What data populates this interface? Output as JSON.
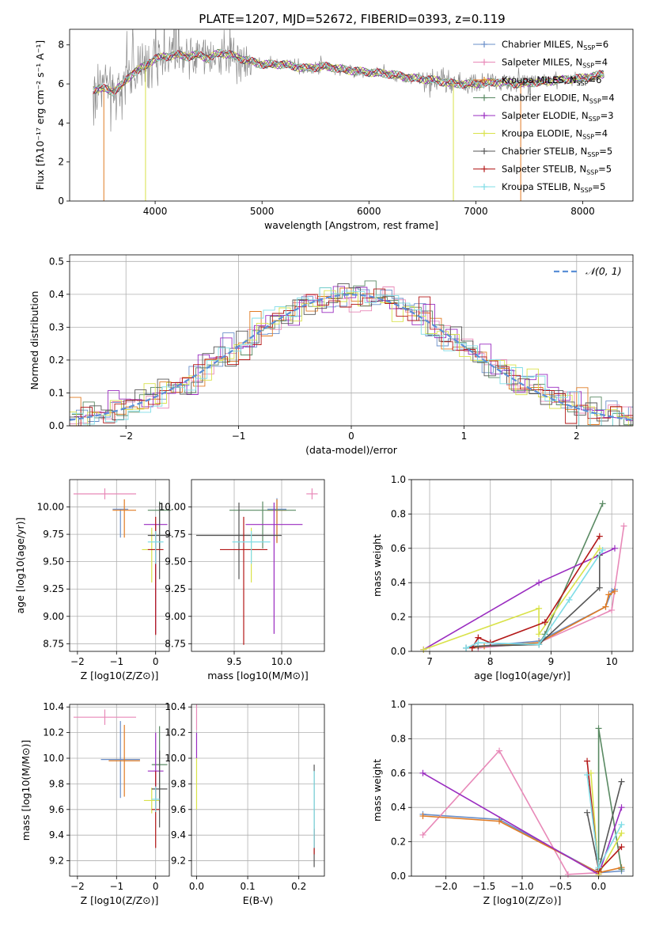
{
  "figure": {
    "title": "PLATE=1207, MJD=52672, FIBERID=0393, z=0.119"
  },
  "colors": {
    "Chabrier MILES": "#6a8fc9",
    "Salpeter MILES": "#e889b8",
    "Kroupa MILES": "#e07b24",
    "Chabrier ELODIE": "#5a8a63",
    "Salpeter ELODIE": "#9a2cc0",
    "Kroupa ELODIE": "#d9e24a",
    "Chabrier STELIB": "#555555",
    "Salpeter STELIB": "#b31818",
    "Kroupa STELIB": "#7fdde6",
    "normal": "#5b8fd6",
    "data": "#808080"
  },
  "chart_data": [
    {
      "type": "line",
      "xlabel": "wavelength [Angstrom, rest frame]",
      "ylabel": "Flux [fλ10⁻¹⁷ erg cm⁻² s⁻¹ A⁻¹]",
      "xlim": [
        3200,
        8470
      ],
      "ylim": [
        0,
        8.8
      ],
      "xticks": [
        4000,
        5000,
        6000,
        7000,
        8000
      ],
      "yticks": [
        0,
        2,
        4,
        6,
        8
      ],
      "grid": false,
      "legend_position": "top-right",
      "legend": [
        "Chabrier MILES, NSSP=6",
        "Salpeter MILES, NSSP=4",
        "Kroupa MILES, NSSP=6",
        "Chabrier ELODIE, NSSP=4",
        "Salpeter ELODIE, NSSP=3",
        "Kroupa ELODIE, NSSP=4",
        "Chabrier STELIB, NSSP=5",
        "Salpeter STELIB, NSSP=5",
        "Kroupa STELIB, NSSP=5"
      ],
      "model_continuum": {
        "x": [
          3420,
          3500,
          3600,
          3700,
          3800,
          3900,
          4000,
          4100,
          4200,
          4300,
          4400,
          4500,
          4600,
          4700,
          4800,
          5000,
          5200,
          5400,
          5600,
          5800,
          6000,
          6200,
          6400,
          6600,
          6800,
          7000,
          7200,
          7400,
          7600,
          7800,
          8000,
          8200
        ],
        "y": [
          5.7,
          5.8,
          5.6,
          6.0,
          6.6,
          6.9,
          7.3,
          7.4,
          7.5,
          7.4,
          7.5,
          7.3,
          7.6,
          7.5,
          7.3,
          7.0,
          7.0,
          6.8,
          6.9,
          6.7,
          6.6,
          6.5,
          6.3,
          6.2,
          6.0,
          6.0,
          6.1,
          6.0,
          6.1,
          6.2,
          6.3,
          6.5
        ]
      }
    },
    {
      "type": "line",
      "xlabel": "(data-model)/error",
      "ylabel": "Normed distribution",
      "xlim": [
        -2.5,
        2.5
      ],
      "ylim": [
        0,
        0.52
      ],
      "xticks": [
        -2,
        -1,
        0,
        1,
        2
      ],
      "yticks": [
        0.0,
        0.1,
        0.2,
        0.3,
        0.4,
        0.5
      ],
      "grid": true,
      "legend_position": "top-right",
      "legend": [
        "𝒩(0, 1)"
      ],
      "curve": "standard normal pdf"
    },
    {
      "type": "scatter",
      "xlabel": "Z [log10(Z/Z⊙)]",
      "ylabel": "age  [log10(age/yr)]",
      "xlim": [
        -2.2,
        0.35
      ],
      "ylim": [
        8.68,
        10.25
      ],
      "xticks": [
        -2,
        -1,
        0
      ],
      "yticks": [
        8.75,
        9.0,
        9.25,
        9.5,
        9.75,
        10.0
      ],
      "grid": true,
      "points": [
        {
          "model": "Chabrier MILES",
          "x": -0.9,
          "y": 9.98,
          "xerr": 0.2,
          "yerr_lo": 0.26,
          "yerr_hi": 0.0
        },
        {
          "model": "Salpeter MILES",
          "x": -1.3,
          "y": 10.12,
          "xerr": 0.8,
          "yerr_lo": 0.05,
          "yerr_hi": 0.05
        },
        {
          "model": "Kroupa MILES",
          "x": -0.8,
          "y": 9.97,
          "xerr": 0.3,
          "yerr_lo": 0.25,
          "yerr_hi": 0.1
        },
        {
          "model": "Chabrier ELODIE",
          "x": 0.1,
          "y": 9.97,
          "xerr": 0.3,
          "yerr_lo": 0.35,
          "yerr_hi": 0.08
        },
        {
          "model": "Salpeter ELODIE",
          "x": 0.0,
          "y": 9.84,
          "xerr": 0.3,
          "yerr_lo": 1.0,
          "yerr_hi": 0.0
        },
        {
          "model": "Kroupa ELODIE",
          "x": -0.1,
          "y": 9.61,
          "xerr": 0.25,
          "yerr_lo": 0.3,
          "yerr_hi": 0.2
        },
        {
          "model": "Chabrier STELIB",
          "x": 0.1,
          "y": 9.74,
          "xerr": 0.3,
          "yerr_lo": 0.4,
          "yerr_hi": 0.3
        },
        {
          "model": "Salpeter STELIB",
          "x": 0.0,
          "y": 9.61,
          "xerr": 0.2,
          "yerr_lo": 0.78,
          "yerr_hi": 0.3
        },
        {
          "model": "Kroupa STELIB",
          "x": 0.0,
          "y": 9.68,
          "xerr": 0.2,
          "yerr_lo": 0.2,
          "yerr_hi": 0.1
        }
      ]
    },
    {
      "type": "scatter",
      "xlabel": "mass [log10(M/M⊙)]",
      "xlim": [
        9.05,
        10.45
      ],
      "ylim": [
        8.68,
        10.25
      ],
      "xticks": [
        9.5,
        10.0
      ],
      "yticks": [
        8.75,
        9.0,
        9.25,
        9.5,
        9.75,
        10.0
      ],
      "grid": true,
      "points": [
        {
          "model": "Chabrier MILES",
          "x": 9.95,
          "y": 9.98,
          "xerr": 0.1,
          "yerr_lo": 0.3,
          "yerr_hi": 0.1
        },
        {
          "model": "Salpeter MILES",
          "x": 10.32,
          "y": 10.12,
          "xerr": 0.06,
          "yerr_lo": 0.05,
          "yerr_hi": 0.05
        },
        {
          "model": "Kroupa MILES",
          "x": 9.95,
          "y": 9.97,
          "xerr": 0.1,
          "yerr_lo": 0.3,
          "yerr_hi": 0.1
        },
        {
          "model": "Chabrier ELODIE",
          "x": 9.8,
          "y": 9.97,
          "xerr": 0.35,
          "yerr_lo": 0.35,
          "yerr_hi": 0.08
        },
        {
          "model": "Salpeter ELODIE",
          "x": 9.92,
          "y": 9.84,
          "xerr": 0.3,
          "yerr_lo": 1.0,
          "yerr_hi": 0.2
        },
        {
          "model": "Kroupa ELODIE",
          "x": 9.68,
          "y": 9.61,
          "xerr": 0.1,
          "yerr_lo": 0.3,
          "yerr_hi": 0.2
        },
        {
          "model": "Chabrier STELIB",
          "x": 9.55,
          "y": 9.74,
          "xerr": 0.45,
          "yerr_lo": 0.4,
          "yerr_hi": 0.3
        },
        {
          "model": "Salpeter STELIB",
          "x": 9.6,
          "y": 9.61,
          "xerr": 0.25,
          "yerr_lo": 0.87,
          "yerr_hi": 0.3
        },
        {
          "model": "Kroupa STELIB",
          "x": 9.68,
          "y": 9.68,
          "xerr": 0.2,
          "yerr_lo": 0.2,
          "yerr_hi": 0.1
        }
      ]
    },
    {
      "type": "line",
      "xlabel": "age  [log10(age/yr)]",
      "ylabel": "mass weight",
      "xlim": [
        6.7,
        10.35
      ],
      "ylim": [
        0,
        1.0
      ],
      "xticks": [
        7,
        8,
        9,
        10
      ],
      "yticks": [
        0.0,
        0.2,
        0.4,
        0.6,
        0.8,
        1.0
      ],
      "grid": true,
      "series": [
        {
          "model": "Chabrier MILES",
          "points": [
            [
              7.6,
              0.02
            ],
            [
              7.8,
              0.03
            ],
            [
              8.8,
              0.06
            ],
            [
              9.9,
              0.26
            ],
            [
              10.0,
              0.35
            ],
            [
              10.05,
              0.36
            ]
          ]
        },
        {
          "model": "Salpeter MILES",
          "points": [
            [
              7.8,
              0.02
            ],
            [
              8.8,
              0.05
            ],
            [
              10.0,
              0.24
            ],
            [
              10.2,
              0.73
            ]
          ]
        },
        {
          "model": "Kroupa MILES",
          "points": [
            [
              7.7,
              0.02
            ],
            [
              7.9,
              0.03
            ],
            [
              8.8,
              0.05
            ],
            [
              9.9,
              0.26
            ],
            [
              9.95,
              0.33
            ],
            [
              10.05,
              0.35
            ]
          ]
        },
        {
          "model": "Chabrier ELODIE",
          "points": [
            [
              7.8,
              0.03
            ],
            [
              8.8,
              0.04
            ],
            [
              8.9,
              0.1
            ],
            [
              9.85,
              0.86
            ]
          ]
        },
        {
          "model": "Salpeter ELODIE",
          "points": [
            [
              6.9,
              0.01
            ],
            [
              8.8,
              0.4
            ],
            [
              10.05,
              0.6
            ]
          ]
        },
        {
          "model": "Kroupa ELODIE",
          "points": [
            [
              6.9,
              0.01
            ],
            [
              8.8,
              0.25
            ],
            [
              8.8,
              0.1
            ],
            [
              9.8,
              0.6
            ]
          ]
        },
        {
          "model": "Chabrier STELIB",
          "points": [
            [
              7.6,
              0.02
            ],
            [
              7.8,
              0.03
            ],
            [
              8.8,
              0.04
            ],
            [
              9.8,
              0.37
            ],
            [
              9.8,
              0.56
            ]
          ]
        },
        {
          "model": "Salpeter STELIB",
          "points": [
            [
              7.7,
              0.02
            ],
            [
              7.8,
              0.08
            ],
            [
              8.0,
              0.05
            ],
            [
              8.9,
              0.17
            ],
            [
              9.8,
              0.67
            ]
          ]
        },
        {
          "model": "Kroupa STELIB",
          "points": [
            [
              7.6,
              0.02
            ],
            [
              7.8,
              0.05
            ],
            [
              8.8,
              0.04
            ],
            [
              9.3,
              0.3
            ],
            [
              9.85,
              0.59
            ]
          ]
        }
      ]
    },
    {
      "type": "scatter",
      "xlabel": "Z [log10(Z/Z⊙)]",
      "ylabel": "mass [log10(M/M⊙)]",
      "xlim": [
        -2.2,
        0.35
      ],
      "ylim": [
        9.08,
        10.42
      ],
      "xticks": [
        -2,
        -1,
        0
      ],
      "yticks": [
        9.2,
        9.4,
        9.6,
        9.8,
        10.0,
        10.2,
        10.4
      ],
      "grid": true,
      "points": [
        {
          "model": "Chabrier MILES",
          "x": -0.9,
          "y": 9.99,
          "xerr": 0.5,
          "yerr": 0.3
        },
        {
          "model": "Salpeter MILES",
          "x": -1.3,
          "y": 10.32,
          "xerr": 0.8,
          "yerr": 0.06
        },
        {
          "model": "Kroupa MILES",
          "x": -0.8,
          "y": 9.98,
          "xerr": 0.4,
          "yerr": 0.28
        },
        {
          "model": "Chabrier ELODIE",
          "x": 0.1,
          "y": 9.95,
          "xerr": 0.2,
          "yerr": 0.3
        },
        {
          "model": "Salpeter ELODIE",
          "x": 0.0,
          "y": 9.9,
          "xerr": 0.2,
          "yerr": 0.3
        },
        {
          "model": "Kroupa ELODIE",
          "x": -0.1,
          "y": 9.67,
          "xerr": 0.2,
          "yerr": 0.1
        },
        {
          "model": "Chabrier STELIB",
          "x": 0.1,
          "y": 9.76,
          "xerr": 0.2,
          "yerr": 0.3
        },
        {
          "model": "Salpeter STELIB",
          "x": 0.0,
          "y": 9.6,
          "xerr": 0.1,
          "yerr": 0.3
        },
        {
          "model": "Kroupa STELIB",
          "x": 0.0,
          "y": 9.68,
          "xerr": 0.1,
          "yerr": 0.1
        }
      ]
    },
    {
      "type": "scatter",
      "xlabel": "E(B-V)",
      "xlim": [
        -0.01,
        0.25
      ],
      "ylim": [
        9.08,
        10.42
      ],
      "xticks": [
        0.0,
        0.1,
        0.2
      ],
      "yticks": [
        9.2,
        9.4,
        9.6,
        9.8,
        10.0,
        10.2,
        10.4
      ],
      "grid": true,
      "points": [
        {
          "model": "Salpeter MILES",
          "x": 0.0,
          "y": 10.32,
          "yerr": 0.1
        },
        {
          "model": "Salpeter ELODIE",
          "x": 0.0,
          "y": 10.1,
          "yerr": 0.1
        },
        {
          "model": "Kroupa ELODIE",
          "x": 0.0,
          "y": 9.8,
          "yerr": 0.2
        },
        {
          "model": "Chabrier STELIB",
          "x": 0.23,
          "y": 9.55,
          "yerr": 0.4
        },
        {
          "model": "Salpeter STELIB",
          "x": 0.23,
          "y": 9.35,
          "yerr": 0.1
        },
        {
          "model": "Kroupa STELIB",
          "x": 0.23,
          "y": 9.6,
          "yerr": 0.3
        }
      ]
    },
    {
      "type": "line",
      "xlabel": "Z [log10(Z/Z⊙)]",
      "ylabel": "mass weight",
      "xlim": [
        -2.45,
        0.45
      ],
      "ylim": [
        0,
        1.0
      ],
      "xticks": [
        -2.0,
        -1.5,
        -1.0,
        -0.5,
        0.0
      ],
      "yticks": [
        0.0,
        0.2,
        0.4,
        0.6,
        0.8,
        1.0
      ],
      "grid": true,
      "series": [
        {
          "model": "Chabrier MILES",
          "points": [
            [
              -2.3,
              0.36
            ],
            [
              -1.3,
              0.33
            ],
            [
              0.0,
              0.02
            ],
            [
              0.3,
              0.03
            ]
          ]
        },
        {
          "model": "Salpeter MILES",
          "points": [
            [
              -2.3,
              0.24
            ],
            [
              -1.3,
              0.73
            ],
            [
              -0.4,
              0.01
            ],
            [
              0.0,
              0.02
            ]
          ]
        },
        {
          "model": "Kroupa MILES",
          "points": [
            [
              -2.3,
              0.35
            ],
            [
              -1.3,
              0.32
            ],
            [
              0.0,
              0.02
            ],
            [
              0.3,
              0.05
            ]
          ]
        },
        {
          "model": "Chabrier ELODIE",
          "points": [
            [
              0.3,
              0.04
            ],
            [
              0.0,
              0.86
            ],
            [
              0.0,
              0.1
            ]
          ]
        },
        {
          "model": "Salpeter ELODIE",
          "points": [
            [
              -2.3,
              0.6
            ],
            [
              0.0,
              0.01
            ],
            [
              0.3,
              0.4
            ]
          ]
        },
        {
          "model": "Kroupa ELODIE",
          "points": [
            [
              0.3,
              0.25
            ],
            [
              0.0,
              0.01
            ],
            [
              -0.1,
              0.6
            ]
          ]
        },
        {
          "model": "Chabrier STELIB",
          "points": [
            [
              -0.15,
              0.37
            ],
            [
              0.0,
              0.04
            ],
            [
              0.3,
              0.55
            ]
          ]
        },
        {
          "model": "Salpeter STELIB",
          "points": [
            [
              -0.15,
              0.67
            ],
            [
              0.0,
              0.03
            ],
            [
              0.3,
              0.17
            ]
          ]
        },
        {
          "model": "Kroupa STELIB",
          "points": [
            [
              -0.15,
              0.59
            ],
            [
              0.0,
              0.05
            ],
            [
              0.3,
              0.3
            ]
          ]
        }
      ]
    }
  ]
}
